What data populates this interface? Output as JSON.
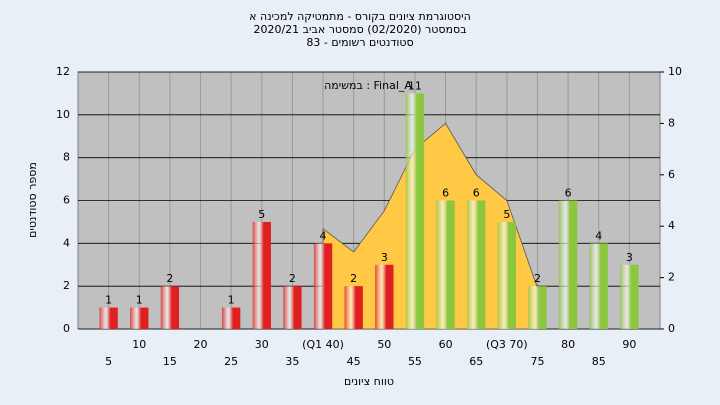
{
  "chart_data": {
    "type": "bar",
    "title": [
      "היסטוגרמת ציונים בקורס - מתמטיקה למכינה א",
      "בסמסטר  (02/2020)  סמסטר אביב 2020/21",
      "סטודנטים רשומים - 83"
    ],
    "annotation": "במשימה : Final_A",
    "y_label": "מספר סטודנטים",
    "x_label": "טווח ציונים",
    "categories": [
      "5",
      "10",
      "15",
      "20",
      "25",
      "30",
      "35",
      "(Q1 40)",
      "45",
      "50",
      "55",
      "60",
      "65",
      "(Q3 70)",
      "75",
      "80",
      "85",
      "90"
    ],
    "series": [
      {
        "values": [
          1,
          1,
          2,
          0,
          1,
          5,
          2,
          4,
          2,
          3,
          11,
          6,
          6,
          5,
          2,
          6,
          4,
          3
        ],
        "colors": [
          "#e02020",
          "#e02020",
          "#e02020",
          "#e02020",
          "#e02020",
          "#e02020",
          "#e02020",
          "#e02020",
          "#e02020",
          "#e02020",
          "#8cc63f",
          "#8cc63f",
          "#8cc63f",
          "#8cc63f",
          "#8cc63f",
          "#8cc63f",
          "#8cc63f",
          "#8cc63f"
        ]
      },
      {
        "type": "area",
        "axis": "y2",
        "color": "#ffc845",
        "values": [
          null,
          null,
          null,
          null,
          null,
          null,
          null,
          3.9,
          3.0,
          4.6,
          7.0,
          8.0,
          6.0,
          5.0,
          1.6,
          null,
          null,
          null
        ]
      }
    ],
    "ylim": [
      0,
      12
    ],
    "yticks": [
      0,
      2,
      4,
      6,
      8,
      10,
      12
    ],
    "y2lim": [
      0,
      10
    ],
    "y2ticks": [
      0,
      2,
      4,
      6,
      8,
      10
    ],
    "grid": true
  }
}
